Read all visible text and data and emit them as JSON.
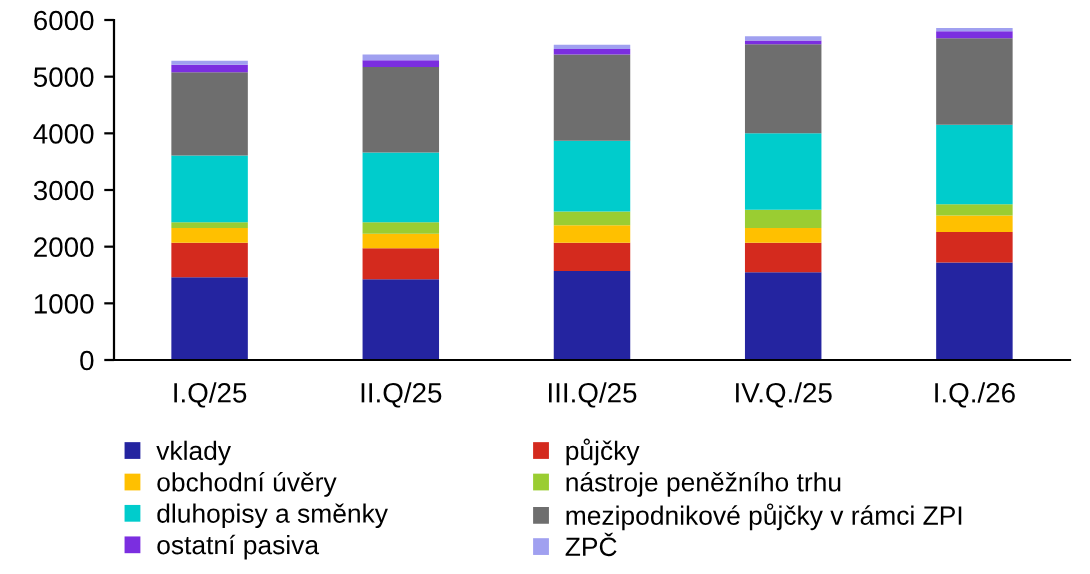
{
  "chart_data": {
    "type": "bar",
    "stacked": true,
    "categories": [
      "I.Q/25",
      "II.Q/25",
      "III.Q/25",
      "IV.Q./25",
      "I.Q./26"
    ],
    "ylim": [
      0,
      6000
    ],
    "yticks": [
      0,
      1000,
      2000,
      3000,
      4000,
      5000,
      6000
    ],
    "grid": false,
    "legend": "bottom",
    "series": [
      {
        "name": "vklady",
        "color": "#2424a0",
        "values": [
          1460,
          1425,
          1570,
          1550,
          1720
        ]
      },
      {
        "name": "půjčky",
        "color": "#d42a1e",
        "values": [
          610,
          545,
          500,
          520,
          540
        ]
      },
      {
        "name": "obchodní úvěry",
        "color": "#ffc000",
        "values": [
          260,
          260,
          310,
          260,
          290
        ]
      },
      {
        "name": "nástroje peněžního trhu",
        "color": "#9acd32",
        "values": [
          100,
          200,
          240,
          320,
          200
        ]
      },
      {
        "name": "dluhopisy a směnky",
        "color": "#00cccc",
        "values": [
          1180,
          1230,
          1250,
          1350,
          1400
        ]
      },
      {
        "name": "mezipodnikové půjčky v rámci ZPI",
        "color": "#6e6e6e",
        "values": [
          1470,
          1510,
          1520,
          1570,
          1530
        ]
      },
      {
        "name": "ostatní pasiva",
        "color": "#7b2ee0",
        "values": [
          130,
          120,
          100,
          70,
          120
        ]
      },
      {
        "name": "ZPČ",
        "color": "#a0a0f0",
        "values": [
          70,
          100,
          75,
          75,
          60
        ]
      }
    ]
  }
}
